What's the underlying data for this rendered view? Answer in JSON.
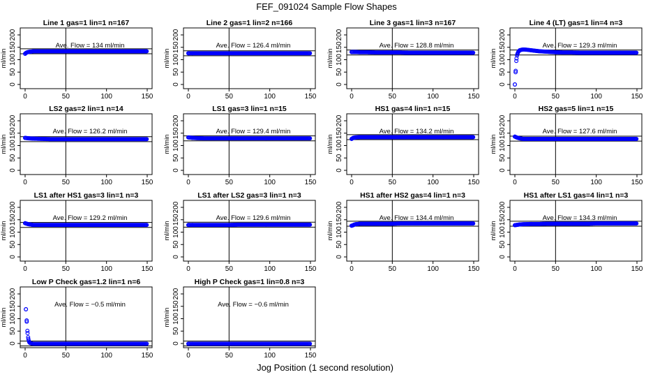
{
  "figure": {
    "title": "FEF_091024  Sample Flow Shapes",
    "xlabel": "Jog Position (1 second resolution)"
  },
  "chart_data": [
    {
      "type": "scatter",
      "title": "Line 1 gas=1 lin=1 n=167",
      "ylabel": "ml/min",
      "annotation": "Ave. Flow =  134  ml/min",
      "xlim": [
        0,
        150
      ],
      "ylim": [
        0,
        200
      ],
      "xticks": [
        0,
        50,
        100,
        150
      ],
      "yticks": [
        0,
        50,
        100,
        150,
        200
      ],
      "hlines": [
        124,
        144
      ],
      "vline": 50,
      "series": [
        {
          "x": [
            0,
            1,
            2,
            3,
            4,
            5,
            8,
            10,
            15,
            20,
            30,
            40,
            50,
            60,
            70,
            80,
            90,
            100,
            110,
            120,
            130,
            140,
            150
          ],
          "y": [
            124,
            127,
            129,
            130,
            131,
            132,
            133,
            134,
            134,
            134,
            134,
            134,
            134,
            134,
            134,
            134,
            134,
            134,
            134,
            134,
            134,
            134,
            134
          ]
        }
      ]
    },
    {
      "type": "scatter",
      "title": "Line 2 gas=1 lin=2 n=166",
      "ylabel": "ml/min",
      "annotation": "Ave. Flow =  126.4  ml/min",
      "xlim": [
        0,
        150
      ],
      "ylim": [
        0,
        200
      ],
      "xticks": [
        0,
        50,
        100,
        150
      ],
      "yticks": [
        0,
        50,
        100,
        150,
        200
      ],
      "hlines": [
        116,
        136
      ],
      "vline": 50,
      "series": [
        {
          "x": [
            0,
            5,
            10,
            20,
            30,
            40,
            50,
            60,
            70,
            80,
            90,
            100,
            110,
            120,
            130,
            140,
            150
          ],
          "y": [
            126,
            126,
            126,
            126,
            126,
            126,
            126,
            126,
            126,
            126,
            126,
            126,
            126,
            126,
            126,
            126,
            126
          ]
        }
      ]
    },
    {
      "type": "scatter",
      "title": "Line 3 gas=1 lin=3 n=167",
      "ylabel": "ml/min",
      "annotation": "Ave. Flow =  128.8  ml/min",
      "xlim": [
        0,
        150
      ],
      "ylim": [
        0,
        200
      ],
      "xticks": [
        0,
        50,
        100,
        150
      ],
      "yticks": [
        0,
        50,
        100,
        150,
        200
      ],
      "hlines": [
        119,
        139
      ],
      "vline": 50,
      "series": [
        {
          "x": [
            0,
            5,
            10,
            20,
            30,
            40,
            50,
            60,
            70,
            80,
            90,
            100,
            110,
            120,
            130,
            140,
            150
          ],
          "y": [
            131,
            131,
            130,
            130,
            129,
            129,
            129,
            129,
            128,
            128,
            128,
            128,
            128,
            128,
            128,
            128,
            128
          ]
        }
      ]
    },
    {
      "type": "scatter",
      "title": "Line 4 (LT) gas=1 lin=4 n=3",
      "ylabel": "ml/min",
      "annotation": "Ave. Flow =  129.3  ml/min",
      "xlim": [
        0,
        150
      ],
      "ylim": [
        0,
        200
      ],
      "xticks": [
        0,
        50,
        100,
        150
      ],
      "yticks": [
        0,
        50,
        100,
        150,
        200
      ],
      "hlines": [
        119,
        139
      ],
      "vline": 50,
      "series": [
        {
          "x": [
            0,
            1,
            2,
            3,
            4,
            5,
            6,
            8,
            10,
            12,
            15,
            20,
            25,
            30,
            40,
            50,
            60,
            70,
            80,
            90,
            100,
            110,
            120,
            130,
            140,
            150
          ],
          "y": [
            0,
            55,
            105,
            122,
            130,
            135,
            138,
            140,
            141,
            141,
            140,
            138,
            136,
            134,
            132,
            130,
            129,
            129,
            128,
            128,
            128,
            128,
            128,
            128,
            128,
            128
          ]
        }
      ]
    },
    {
      "type": "scatter",
      "title": "LS2 gas=2 lin=1 n=14",
      "ylabel": "ml/min",
      "annotation": "Ave. Flow =  126.2  ml/min",
      "xlim": [
        0,
        150
      ],
      "ylim": [
        0,
        200
      ],
      "xticks": [
        0,
        50,
        100,
        150
      ],
      "yticks": [
        0,
        50,
        100,
        150,
        200
      ],
      "hlines": [
        116,
        136
      ],
      "vline": 50,
      "series": [
        {
          "x": [
            0,
            5,
            10,
            20,
            30,
            40,
            50,
            60,
            70,
            80,
            90,
            100,
            110,
            120,
            130,
            140,
            150
          ],
          "y": [
            131,
            129,
            128,
            127,
            126,
            126,
            126,
            126,
            126,
            126,
            126,
            126,
            126,
            126,
            126,
            126,
            126
          ]
        }
      ]
    },
    {
      "type": "scatter",
      "title": "LS1 gas=3 lin=1 n=15",
      "ylabel": "ml/min",
      "annotation": "Ave. Flow =  129.4  ml/min",
      "xlim": [
        0,
        150
      ],
      "ylim": [
        0,
        200
      ],
      "xticks": [
        0,
        50,
        100,
        150
      ],
      "yticks": [
        0,
        50,
        100,
        150,
        200
      ],
      "hlines": [
        119,
        139
      ],
      "vline": 50,
      "series": [
        {
          "x": [
            0,
            5,
            10,
            20,
            30,
            40,
            50,
            60,
            70,
            80,
            90,
            100,
            110,
            120,
            130,
            140,
            150
          ],
          "y": [
            133,
            131,
            130,
            129,
            129,
            129,
            129,
            129,
            129,
            129,
            129,
            129,
            129,
            129,
            129,
            129,
            129
          ]
        }
      ]
    },
    {
      "type": "scatter",
      "title": "HS1 gas=4 lin=1 n=15",
      "ylabel": "ml/min",
      "annotation": "Ave. Flow =  134.2  ml/min",
      "xlim": [
        0,
        150
      ],
      "ylim": [
        0,
        200
      ],
      "xticks": [
        0,
        50,
        100,
        150
      ],
      "yticks": [
        0,
        50,
        100,
        150,
        200
      ],
      "hlines": [
        124,
        144
      ],
      "vline": 50,
      "series": [
        {
          "x": [
            0,
            1,
            2,
            3,
            5,
            10,
            20,
            30,
            40,
            50,
            60,
            70,
            80,
            90,
            100,
            110,
            120,
            130,
            140,
            150
          ],
          "y": [
            127,
            129,
            131,
            132,
            133,
            134,
            134,
            134,
            134,
            134,
            134,
            134,
            134,
            134,
            134,
            134,
            134,
            134,
            134,
            134
          ]
        }
      ]
    },
    {
      "type": "scatter",
      "title": "HS2 gas=5 lin=1 n=15",
      "ylabel": "ml/min",
      "annotation": "Ave. Flow =  127.6  ml/min",
      "xlim": [
        0,
        150
      ],
      "ylim": [
        0,
        200
      ],
      "xticks": [
        0,
        50,
        100,
        150
      ],
      "yticks": [
        0,
        50,
        100,
        150,
        200
      ],
      "hlines": [
        118,
        138
      ],
      "vline": 50,
      "series": [
        {
          "x": [
            0,
            2,
            4,
            6,
            8,
            10,
            20,
            30,
            40,
            50,
            60,
            70,
            80,
            90,
            100,
            110,
            120,
            130,
            140,
            150
          ],
          "y": [
            136,
            133,
            131,
            129,
            128,
            127,
            127,
            127,
            127,
            127,
            127,
            127,
            127,
            127,
            127,
            127,
            127,
            127,
            127,
            127
          ]
        }
      ]
    },
    {
      "type": "scatter",
      "title": "LS1 after HS1 gas=3 lin=1 n=3",
      "ylabel": "ml/min",
      "annotation": "Ave. Flow =  129.2  ml/min",
      "xlim": [
        0,
        150
      ],
      "ylim": [
        0,
        200
      ],
      "xticks": [
        0,
        50,
        100,
        150
      ],
      "yticks": [
        0,
        50,
        100,
        150,
        200
      ],
      "hlines": [
        119,
        139
      ],
      "vline": 50,
      "series": [
        {
          "x": [
            0,
            2,
            4,
            6,
            8,
            10,
            20,
            30,
            40,
            50,
            60,
            70,
            80,
            90,
            100,
            110,
            120,
            130,
            140,
            150
          ],
          "y": [
            136,
            134,
            132,
            131,
            130,
            129,
            129,
            129,
            129,
            129,
            129,
            129,
            129,
            129,
            129,
            129,
            129,
            129,
            129,
            129
          ]
        }
      ]
    },
    {
      "type": "scatter",
      "title": "LS1 after LS2 gas=3 lin=1 n=3",
      "ylabel": "ml/min",
      "annotation": "Ave. Flow =  129.6  ml/min",
      "xlim": [
        0,
        150
      ],
      "ylim": [
        0,
        200
      ],
      "xticks": [
        0,
        50,
        100,
        150
      ],
      "yticks": [
        0,
        50,
        100,
        150,
        200
      ],
      "hlines": [
        120,
        140
      ],
      "vline": 50,
      "series": [
        {
          "x": [
            0,
            5,
            10,
            20,
            30,
            40,
            50,
            60,
            70,
            80,
            90,
            100,
            110,
            120,
            130,
            140,
            150
          ],
          "y": [
            129,
            129,
            129,
            129,
            129,
            129,
            129,
            130,
            130,
            130,
            130,
            130,
            130,
            130,
            130,
            130,
            130
          ]
        }
      ]
    },
    {
      "type": "scatter",
      "title": "HS1 after HS2 gas=4 lin=1 n=3",
      "ylabel": "ml/min",
      "annotation": "Ave. Flow =  134.4  ml/min",
      "xlim": [
        0,
        150
      ],
      "ylim": [
        0,
        200
      ],
      "xticks": [
        0,
        50,
        100,
        150
      ],
      "yticks": [
        0,
        50,
        100,
        150,
        200
      ],
      "hlines": [
        124,
        144
      ],
      "vline": 50,
      "series": [
        {
          "x": [
            0,
            1,
            2,
            3,
            5,
            8,
            10,
            20,
            30,
            40,
            50,
            60,
            70,
            80,
            90,
            100,
            110,
            120,
            130,
            140,
            150
          ],
          "y": [
            126,
            127,
            128,
            130,
            132,
            133,
            134,
            134,
            134,
            134,
            134,
            135,
            135,
            135,
            135,
            135,
            135,
            135,
            135,
            135,
            135
          ]
        }
      ]
    },
    {
      "type": "scatter",
      "title": "HS1 after LS1 gas=4 lin=1 n=3",
      "ylabel": "ml/min",
      "annotation": "Ave. Flow =  134.3  ml/min",
      "xlim": [
        0,
        150
      ],
      "ylim": [
        0,
        200
      ],
      "xticks": [
        0,
        50,
        100,
        150
      ],
      "yticks": [
        0,
        50,
        100,
        150,
        200
      ],
      "hlines": [
        124,
        144
      ],
      "vline": 50,
      "series": [
        {
          "x": [
            0,
            2,
            4,
            6,
            10,
            20,
            30,
            40,
            50,
            60,
            70,
            80,
            90,
            100,
            110,
            120,
            130,
            140,
            150
          ],
          "y": [
            128,
            129,
            130,
            131,
            132,
            133,
            133,
            134,
            134,
            134,
            134,
            134,
            134,
            135,
            135,
            135,
            135,
            135,
            135
          ]
        }
      ]
    },
    {
      "type": "scatter",
      "title": "Low P Check gas=1.2 lin=1 n=6",
      "ylabel": "ml/min",
      "annotation": "Ave. Flow =  −0.5  ml/min",
      "xlim": [
        0,
        150
      ],
      "ylim": [
        0,
        200
      ],
      "xticks": [
        0,
        50,
        100,
        150
      ],
      "yticks": [
        0,
        50,
        100,
        150,
        200
      ],
      "hlines": [
        -10,
        10
      ],
      "vline": 50,
      "series": [
        {
          "x": [
            1,
            2,
            3,
            4,
            5,
            6,
            8,
            10,
            15,
            20,
            30,
            40,
            50,
            60,
            70,
            80,
            90,
            100,
            110,
            120,
            130,
            140,
            150
          ],
          "y": [
            138,
            88,
            42,
            18,
            6,
            2,
            0,
            -1,
            -1,
            -1,
            -1,
            -1,
            -1,
            -1,
            -1,
            -1,
            -1,
            -1,
            -1,
            -1,
            -1,
            -1,
            -1
          ]
        }
      ]
    },
    {
      "type": "scatter",
      "title": "High P Check gas=1 lin=0.8 n=3",
      "ylabel": "ml/min",
      "annotation": "Ave. Flow =  −0.6  ml/min",
      "xlim": [
        0,
        150
      ],
      "ylim": [
        0,
        200
      ],
      "xticks": [
        0,
        50,
        100,
        150
      ],
      "yticks": [
        0,
        50,
        100,
        150,
        200
      ],
      "hlines": [
        -10,
        10
      ],
      "vline": 50,
      "series": [
        {
          "x": [
            0,
            5,
            10,
            20,
            30,
            40,
            50,
            60,
            70,
            80,
            90,
            100,
            110,
            120,
            130,
            140,
            150
          ],
          "y": [
            -1,
            -1,
            -1,
            -1,
            -1,
            -1,
            -1,
            -1,
            -1,
            -1,
            -1,
            -1,
            -1,
            -1,
            -1,
            -1,
            -1
          ]
        }
      ]
    }
  ],
  "style": {
    "point_color": "#0000ff",
    "line_color": "#000000",
    "background": "#ffffff"
  }
}
